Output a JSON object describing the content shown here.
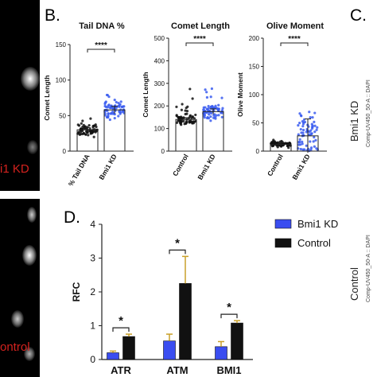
{
  "image_labels": {
    "top": "i1 KD",
    "bottom": "ontrol"
  },
  "panel_letters": {
    "b": "B.",
    "c": "C.",
    "d": "D."
  },
  "side_panel": {
    "axis_top": "Comp-UV450_50-A :: DAPI",
    "axis_bottom": "Comp-UV450_50-A :: DAPI",
    "label_top": "Bmi1 KD",
    "label_bottom": "Control"
  },
  "colors": {
    "kd_blue": "#3a4df0",
    "control_black": "#111111",
    "scatter_blue": "#3a5cf0",
    "scatter_black": "#111111"
  },
  "chart_data": [
    {
      "type": "bar",
      "title": "Tail DNA %",
      "ylabel": "Comet Length",
      "categories": [
        "% Tail DNA",
        "Bmi1 KD"
      ],
      "values": [
        30,
        58
      ],
      "errors": [
        3,
        5
      ],
      "ylim": [
        0,
        150
      ],
      "yticks": [
        0,
        50,
        100,
        150
      ],
      "significance": "****",
      "point_colors": [
        "#111111",
        "#3a5cf0"
      ]
    },
    {
      "type": "bar",
      "title": "Comet Length",
      "ylabel": "Comet Length",
      "categories": [
        "Control",
        "Bmi1 KD"
      ],
      "values": [
        140,
        175
      ],
      "errors": [
        8,
        12
      ],
      "ylim": [
        0,
        500
      ],
      "yticks": [
        0,
        100,
        200,
        300,
        400,
        500
      ],
      "significance": "****",
      "point_colors": [
        "#111111",
        "#3a5cf0"
      ]
    },
    {
      "type": "bar",
      "title": "Olive Moment",
      "ylabel": "Olive Moment",
      "categories": [
        "Control",
        "Bmi1 KD"
      ],
      "values": [
        12,
        27
      ],
      "errors": [
        3,
        30
      ],
      "ylim": [
        0,
        200
      ],
      "yticks": [
        0,
        50,
        100,
        150,
        200
      ],
      "significance": "****",
      "point_colors": [
        "#111111",
        "#3a5cf0"
      ]
    },
    {
      "type": "bar",
      "ylabel": "RFC",
      "categories": [
        "ATR",
        "ATM",
        "BMI1"
      ],
      "series": [
        {
          "name": "Bmi1 KD",
          "values": [
            0.2,
            0.55,
            0.38
          ],
          "errors": [
            0.05,
            0.2,
            0.15
          ]
        },
        {
          "name": "Control",
          "values": [
            0.68,
            2.25,
            1.08
          ],
          "errors": [
            0.07,
            0.8,
            0.07
          ]
        }
      ],
      "ylim": [
        0,
        4
      ],
      "yticks": [
        0,
        1,
        2,
        3,
        4
      ],
      "significance": [
        "*",
        "*",
        "*"
      ],
      "legend": "top-right"
    }
  ]
}
